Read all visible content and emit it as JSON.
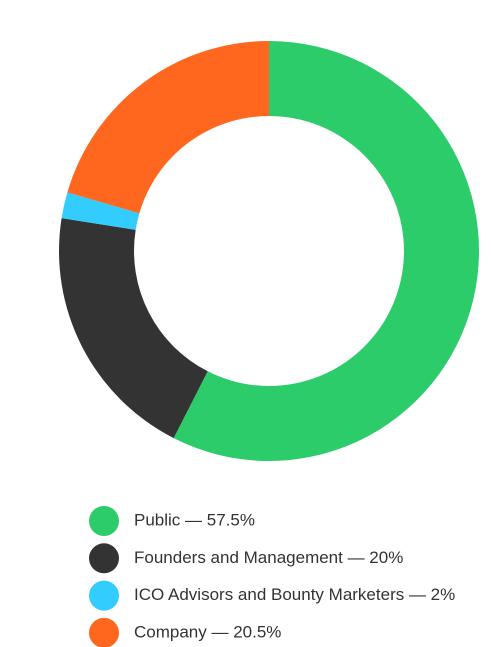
{
  "chart_data": {
    "type": "donut",
    "categories": [
      "Public — 57.5%",
      "Founders and Management — 20%",
      "ICO Advisors and Bounty Marketers — 2%",
      "Company — 20.5%"
    ],
    "values": [
      57.5,
      20,
      2,
      20.5
    ],
    "colors": [
      "#2bcc69",
      "#333333",
      "#33ccff",
      "#ff671f"
    ]
  }
}
